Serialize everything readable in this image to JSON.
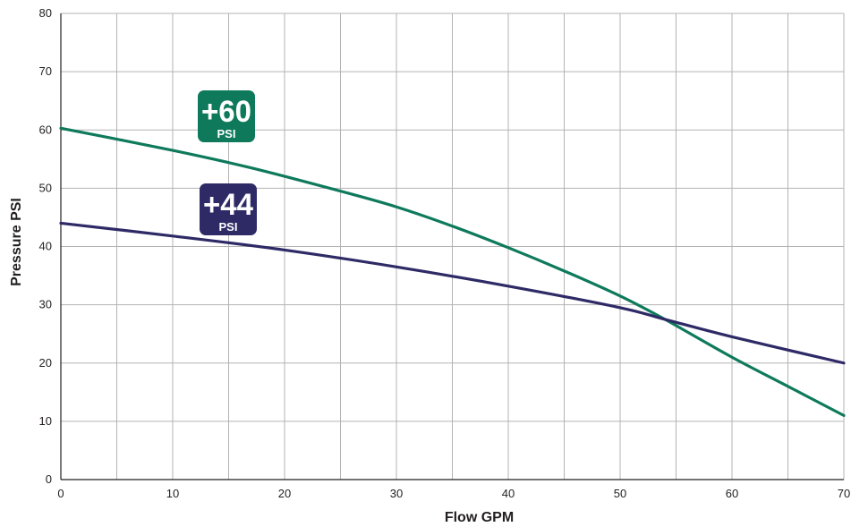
{
  "chart_data": {
    "type": "line",
    "xlabel": "Flow GPM",
    "ylabel": "Pressure PSI",
    "xlim": [
      0,
      70
    ],
    "ylim": [
      0,
      80
    ],
    "xticks": [
      "0",
      "10",
      "20",
      "30",
      "40",
      "50",
      "60",
      "70"
    ],
    "yticks": [
      "0",
      "10",
      "20",
      "30",
      "40",
      "50",
      "60",
      "70",
      "80"
    ],
    "grid": true,
    "series": [
      {
        "color": "#0e7a5b",
        "badge": {
          "value": "+60",
          "unit": "PSI",
          "color": "#0e7a5b"
        },
        "x": [
          0,
          10,
          17,
          25,
          30,
          35,
          40,
          45,
          50,
          54,
          60,
          65,
          70
        ],
        "y": [
          60.3,
          56.5,
          53.5,
          49.5,
          46.8,
          43.5,
          39.8,
          35.8,
          31.5,
          27.5,
          21,
          16,
          11
        ]
      },
      {
        "color": "#2e2a66",
        "badge": {
          "value": "+44",
          "unit": "PSI",
          "color": "#2e2a66"
        },
        "x": [
          0,
          10,
          20,
          30,
          40,
          50,
          54,
          60,
          70
        ],
        "y": [
          44,
          41.8,
          39.4,
          36.5,
          33.2,
          29.5,
          27.5,
          24.5,
          20
        ]
      }
    ]
  }
}
